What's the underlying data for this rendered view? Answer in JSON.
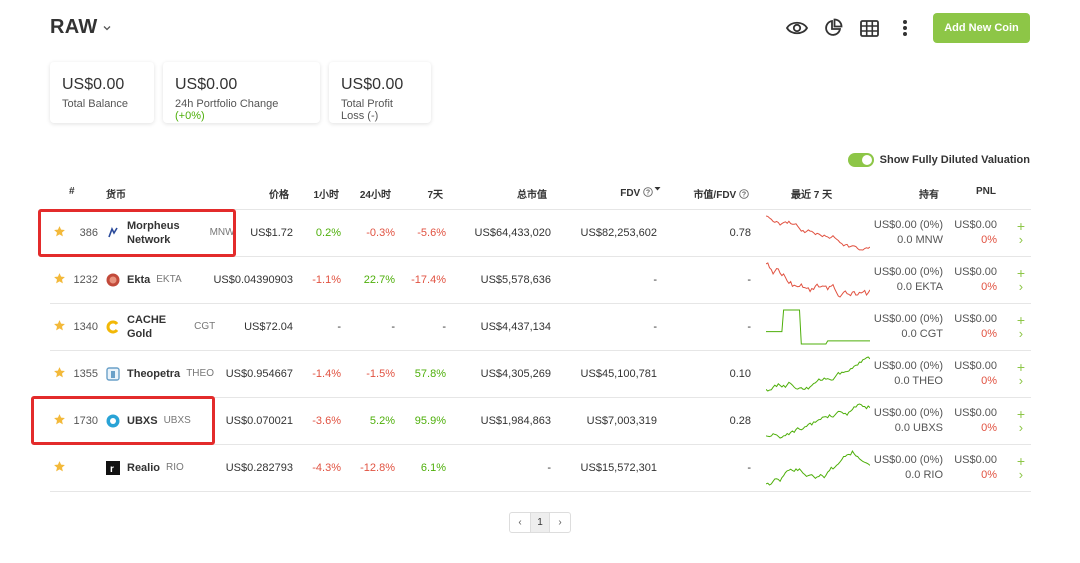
{
  "header": {
    "title": "RAW"
  },
  "toolbar": {
    "add_coin_label": "Add New Coin"
  },
  "cards": [
    {
      "value": "US$0.00",
      "label": "Total Balance"
    },
    {
      "value": "US$0.00",
      "label_prefix": "24h Portfolio Change ",
      "label_change": "(+0%)"
    },
    {
      "value": "US$0.00",
      "label": "Total Profit Loss (-)"
    }
  ],
  "toggle": {
    "label": "Show Fully Diluted Valuation",
    "on": true
  },
  "table": {
    "headers": {
      "rank": "#",
      "coin": "货币",
      "price": "价格",
      "h1": "1小时",
      "h24": "24小时",
      "d7": "7天",
      "mcap": "总市值",
      "fdv": "FDV",
      "mcfdv": "市值/FDV",
      "last7": "最近 7 天",
      "holdings": "持有",
      "pnl": "PNL"
    },
    "rows": [
      {
        "rank": "386",
        "name_line1": "Morpheus",
        "name_line2": "Network",
        "symbol": "MNW",
        "price": "US$1.72",
        "h1": "0.2%",
        "h24": "-0.3%",
        "d7": "-5.6%",
        "mcap": "US$64,433,020",
        "fdv": "US$82,253,602",
        "mcfdv": "0.78",
        "hold_value": "US$0.00 (0%)",
        "hold_amount": "0.0 MNW",
        "pnl_value": "US$0.00",
        "pnl_pct": "0%",
        "h1_dir": "up",
        "h24_dir": "down",
        "d7_dir": "down",
        "spark_color": "#e15241"
      },
      {
        "rank": "1232",
        "name_line1": "Ekta",
        "name_line2": "",
        "symbol": "EKTA",
        "price": "US$0.04390903",
        "h1": "-1.1%",
        "h24": "22.7%",
        "d7": "-17.4%",
        "mcap": "US$5,578,636",
        "fdv": "-",
        "mcfdv": "-",
        "hold_value": "US$0.00 (0%)",
        "hold_amount": "0.0 EKTA",
        "pnl_value": "US$0.00",
        "pnl_pct": "0%",
        "h1_dir": "down",
        "h24_dir": "up",
        "d7_dir": "down",
        "spark_color": "#e15241"
      },
      {
        "rank": "1340",
        "name_line1": "CACHE",
        "name_line2": "Gold",
        "symbol": "CGT",
        "price": "US$72.04",
        "h1": "-",
        "h24": "-",
        "d7": "-",
        "mcap": "US$4,437,134",
        "fdv": "-",
        "mcfdv": "-",
        "hold_value": "US$0.00 (0%)",
        "hold_amount": "0.0 CGT",
        "pnl_value": "US$0.00",
        "pnl_pct": "0%",
        "h1_dir": "none",
        "h24_dir": "none",
        "d7_dir": "none",
        "spark_color": "#4eaf0a"
      },
      {
        "rank": "1355",
        "name_line1": "Theopetra",
        "name_line2": "",
        "symbol": "THEO",
        "price": "US$0.954667",
        "h1": "-1.4%",
        "h24": "-1.5%",
        "d7": "57.8%",
        "mcap": "US$4,305,269",
        "fdv": "US$45,100,781",
        "mcfdv": "0.10",
        "hold_value": "US$0.00 (0%)",
        "hold_amount": "0.0 THEO",
        "pnl_value": "US$0.00",
        "pnl_pct": "0%",
        "h1_dir": "down",
        "h24_dir": "down",
        "d7_dir": "up",
        "spark_color": "#4eaf0a"
      },
      {
        "rank": "1730",
        "name_line1": "UBXS",
        "name_line2": "",
        "symbol": "UBXS",
        "price": "US$0.070021",
        "h1": "-3.6%",
        "h24": "5.2%",
        "d7": "95.9%",
        "mcap": "US$1,984,863",
        "fdv": "US$7,003,319",
        "mcfdv": "0.28",
        "hold_value": "US$0.00 (0%)",
        "hold_amount": "0.0 UBXS",
        "pnl_value": "US$0.00",
        "pnl_pct": "0%",
        "h1_dir": "down",
        "h24_dir": "up",
        "d7_dir": "up",
        "spark_color": "#4eaf0a"
      },
      {
        "rank": "",
        "name_line1": "Realio",
        "name_line2": "",
        "symbol": "RIO",
        "price": "US$0.282793",
        "h1": "-4.3%",
        "h24": "-12.8%",
        "d7": "6.1%",
        "mcap": "-",
        "fdv": "US$15,572,301",
        "mcfdv": "-",
        "hold_value": "US$0.00 (0%)",
        "hold_amount": "0.0 RIO",
        "pnl_value": "US$0.00",
        "pnl_pct": "0%",
        "h1_dir": "down",
        "h24_dir": "down",
        "d7_dir": "up",
        "spark_color": "#4eaf0a"
      }
    ]
  },
  "pagination": {
    "prev": "‹",
    "current": "1",
    "next": "›"
  },
  "colors": {
    "accent": "#8dc647",
    "up": "#4eaf0a",
    "down": "#e15241",
    "highlight": "#e32b2b"
  }
}
